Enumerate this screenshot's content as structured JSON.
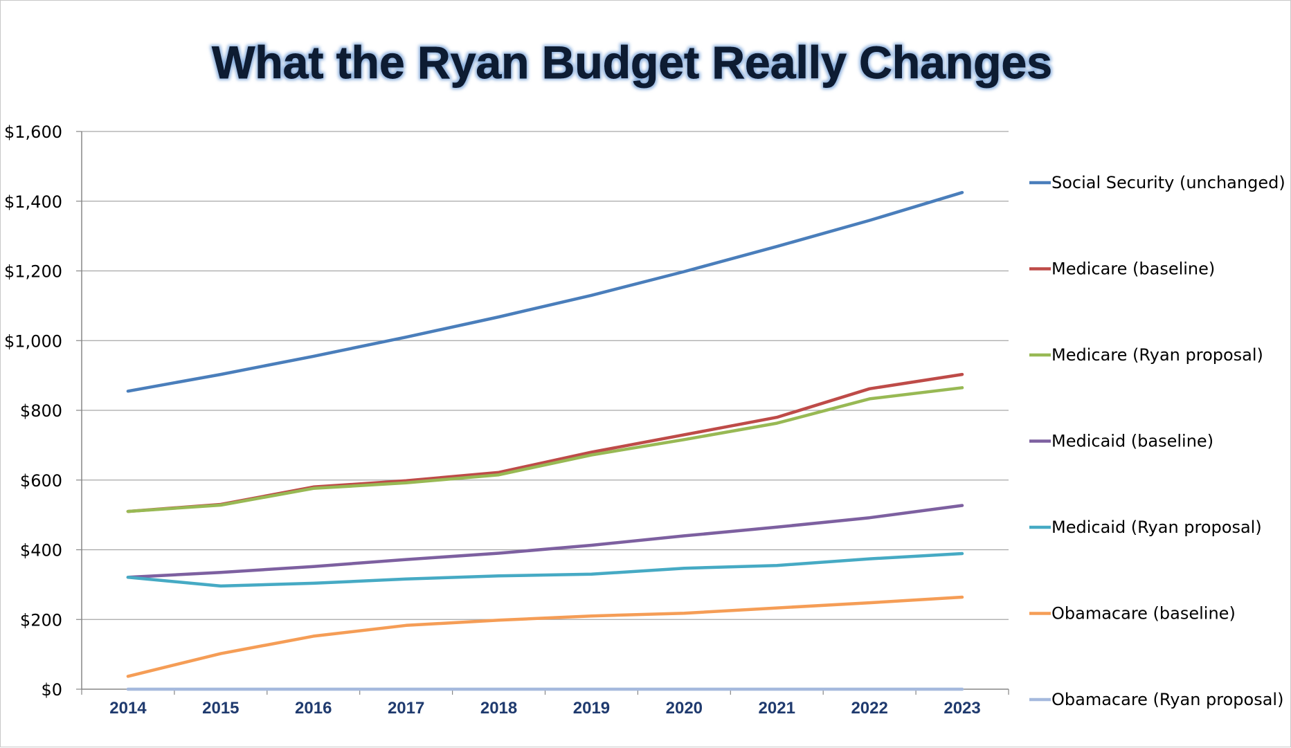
{
  "chart_data": {
    "type": "line",
    "title": "What the Ryan Budget Really Changes",
    "xlabel": "",
    "ylabel": "",
    "x": [
      "2014",
      "2015",
      "2016",
      "2017",
      "2018",
      "2019",
      "2020",
      "2021",
      "2022",
      "2023"
    ],
    "ylim": [
      0,
      1600
    ],
    "yticks": [
      0,
      200,
      400,
      600,
      800,
      1000,
      1200,
      1400,
      1600
    ],
    "ytick_labels": [
      "$0",
      "$200",
      "$400",
      "$600",
      "$800",
      "$1,000",
      "$1,200",
      "$1,400",
      "$1,600"
    ],
    "grid": "horizontal",
    "legend_position": "right",
    "series": [
      {
        "name": "Social Security (unchanged)",
        "color": "#4a7ebb",
        "values": [
          855,
          903,
          955,
          1010,
          1068,
          1130,
          1198,
          1270,
          1345,
          1425
        ]
      },
      {
        "name": "Medicare (baseline)",
        "color": "#be4b48",
        "values": [
          510,
          530,
          580,
          598,
          622,
          680,
          730,
          780,
          862,
          903
        ]
      },
      {
        "name": "Medicare (Ryan proposal)",
        "color": "#98b954",
        "values": [
          510,
          528,
          576,
          592,
          615,
          672,
          716,
          763,
          833,
          865
        ]
      },
      {
        "name": "Medicaid (baseline)",
        "color": "#7d60a0",
        "values": [
          321,
          335,
          352,
          372,
          390,
          413,
          440,
          465,
          492,
          527
        ]
      },
      {
        "name": "Medicaid (Ryan proposal)",
        "color": "#46aac4",
        "values": [
          321,
          296,
          304,
          316,
          325,
          330,
          347,
          355,
          374,
          389
        ]
      },
      {
        "name": "Obamacare (baseline)",
        "color": "#f59d56",
        "values": [
          37,
          102,
          152,
          183,
          198,
          210,
          218,
          233,
          248,
          264
        ]
      },
      {
        "name": "Obamacare (Ryan proposal)",
        "color": "#a5b9dd",
        "values": [
          0,
          0,
          0,
          0,
          0,
          0,
          0,
          0,
          0,
          0
        ]
      }
    ]
  }
}
